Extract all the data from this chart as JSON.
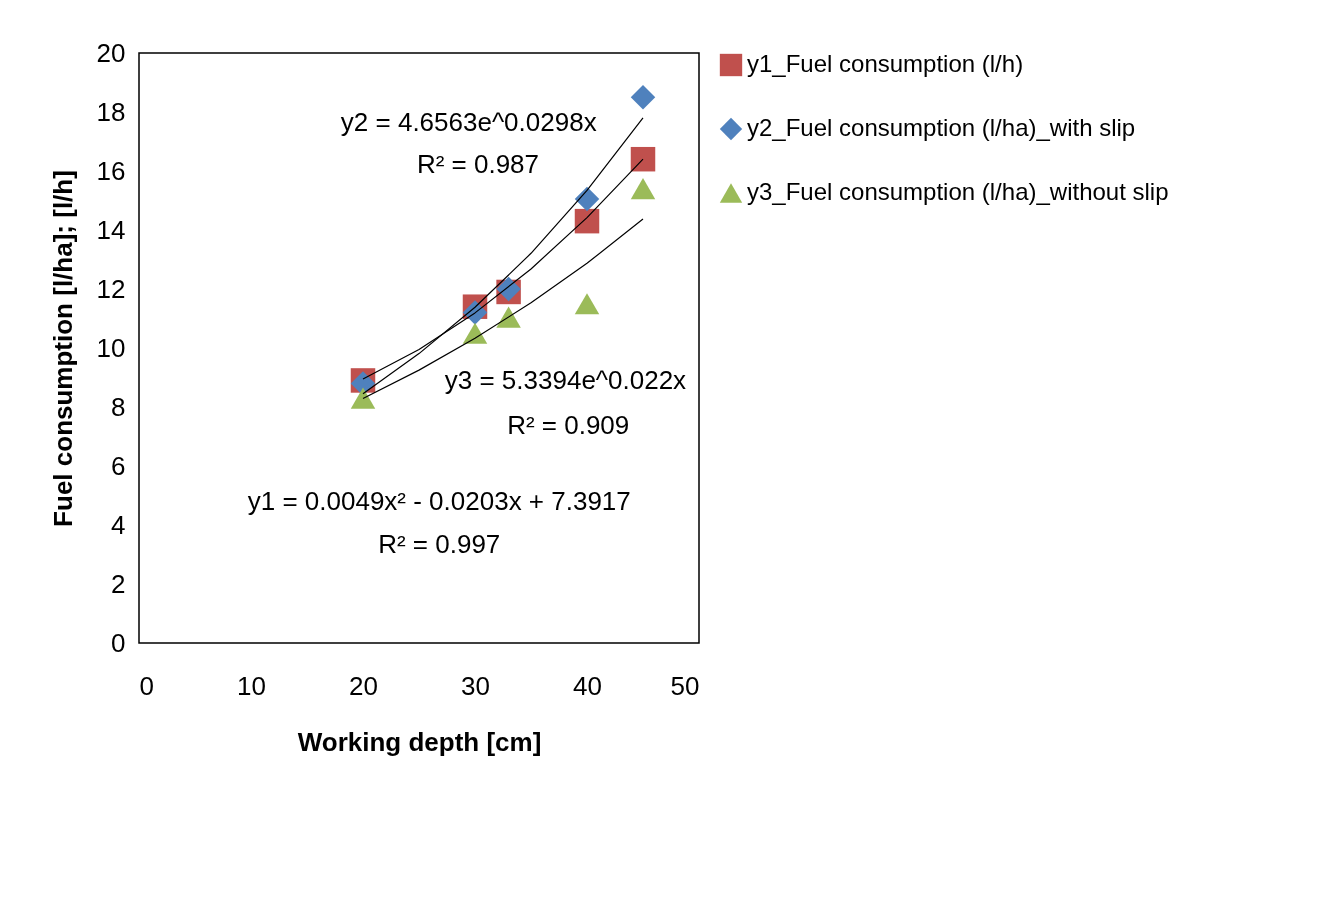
{
  "chart_data": {
    "type": "scatter",
    "xlabel": "Working depth [cm]",
    "ylabel": "Fuel  consumption [l/ha]; [l/h]",
    "x": [
      20,
      30,
      33,
      40,
      45
    ],
    "series": [
      {
        "name": "y1_Fuel consumption (l/h)",
        "color": "#c0504d",
        "marker": "square",
        "values": [
          8.9,
          11.4,
          11.9,
          14.3,
          16.4
        ]
      },
      {
        "name": "y2_Fuel consumption (l/ha)_with slip",
        "color": "#4f81bd",
        "marker": "diamond",
        "values": [
          8.8,
          11.2,
          12.0,
          15.05,
          18.5
        ]
      },
      {
        "name": "y3_Fuel consumption (l/ha)_without slip",
        "color": "#9bbb59",
        "marker": "triangle",
        "values": [
          8.3,
          10.5,
          11.05,
          11.5,
          15.4
        ]
      },
      {
        "type": "line",
        "color": "#000000",
        "x": [
          20,
          25,
          30,
          35,
          40,
          45
        ],
        "values": [
          8.95,
          9.95,
          11.19,
          12.68,
          14.42,
          16.4
        ]
      },
      {
        "type": "line",
        "color": "#000000",
        "x": [
          20,
          25,
          30,
          35,
          40,
          45
        ],
        "values": [
          8.45,
          9.81,
          11.38,
          13.21,
          15.34,
          17.8
        ]
      },
      {
        "type": "line",
        "color": "#000000",
        "x": [
          20,
          25,
          30,
          35,
          40,
          45
        ],
        "values": [
          8.29,
          9.25,
          10.33,
          11.53,
          12.87,
          14.37
        ]
      }
    ],
    "xlim": [
      0,
      50
    ],
    "xticks": [
      0,
      10,
      20,
      30,
      40,
      50
    ],
    "ylim": [
      0,
      20
    ],
    "yticks": [
      0,
      2,
      4,
      6,
      8,
      10,
      12,
      14,
      16,
      18,
      20
    ],
    "grid": false,
    "legend": "right",
    "annotations": [
      "y2 = 4.6563e^0.0298x",
      "R² = 0.987",
      "y3 = 5.3394e^0.022x",
      "R² = 0.909",
      "y1 = 0.0049x² - 0.0203x + 7.3917",
      "R² = 0.997"
    ]
  }
}
